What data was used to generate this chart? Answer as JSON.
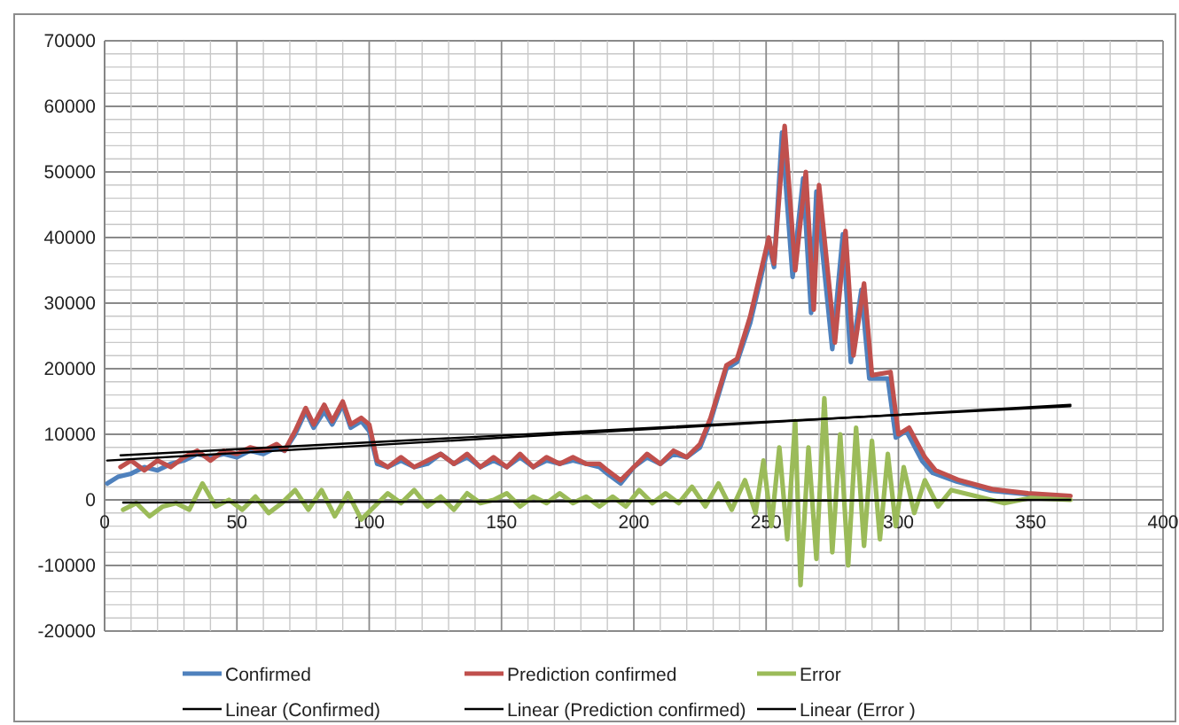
{
  "chart_data": {
    "type": "line",
    "legend": "bottom",
    "grid": true,
    "xlim": [
      0,
      400
    ],
    "xticks": [
      0,
      {
        "value": 10,
        "label": null
      },
      {
        "value": 20,
        "label": null
      },
      {
        "value": 30,
        "label": null
      },
      {
        "value": 40,
        "label": null
      },
      50,
      {
        "value": 60,
        "label": null
      },
      {
        "value": 70,
        "label": null
      },
      {
        "value": 80,
        "label": null
      },
      {
        "value": 90,
        "label": null
      },
      100,
      {
        "value": 110,
        "label": null
      },
      {
        "value": 120,
        "label": null
      },
      {
        "value": 130,
        "label": null
      },
      {
        "value": 140,
        "label": null
      },
      150,
      {
        "value": 160,
        "label": null
      },
      {
        "value": 170,
        "label": null
      },
      {
        "value": 180,
        "label": null
      },
      {
        "value": 190,
        "label": null
      },
      200,
      {
        "value": 210,
        "label": null
      },
      {
        "value": 220,
        "label": null
      },
      {
        "value": 230,
        "label": null
      },
      {
        "value": 240,
        "label": null
      },
      250,
      {
        "value": 260,
        "label": null
      },
      {
        "value": 270,
        "label": null
      },
      {
        "value": 280,
        "label": null
      },
      {
        "value": 290,
        "label": null
      },
      300,
      {
        "value": 310,
        "label": null
      },
      {
        "value": 320,
        "label": null
      },
      {
        "value": 330,
        "label": null
      },
      {
        "value": 340,
        "label": null
      },
      350,
      {
        "value": 360,
        "label": null
      },
      {
        "value": 370,
        "label": null
      },
      {
        "value": 380,
        "label": null
      },
      {
        "value": 390,
        "label": null
      },
      400
    ],
    "ylim": [
      -20000,
      70000
    ],
    "yticks": [
      -20000,
      {
        "value": -18000,
        "label": null
      },
      {
        "value": -16000,
        "label": null
      },
      {
        "value": -14000,
        "label": null
      },
      {
        "value": -12000,
        "label": null
      },
      -10000,
      {
        "value": -8000,
        "label": null
      },
      {
        "value": -6000,
        "label": null
      },
      {
        "value": -4000,
        "label": null
      },
      {
        "value": -2000,
        "label": null
      },
      0,
      {
        "value": 2000,
        "label": null
      },
      {
        "value": 4000,
        "label": null
      },
      {
        "value": 6000,
        "label": null
      },
      {
        "value": 8000,
        "label": null
      },
      10000,
      {
        "value": 12000,
        "label": null
      },
      {
        "value": 14000,
        "label": null
      },
      {
        "value": 16000,
        "label": null
      },
      {
        "value": 18000,
        "label": null
      },
      20000,
      {
        "value": 22000,
        "label": null
      },
      {
        "value": 24000,
        "label": null
      },
      {
        "value": 26000,
        "label": null
      },
      {
        "value": 28000,
        "label": null
      },
      30000,
      {
        "value": 32000,
        "label": null
      },
      {
        "value": 34000,
        "label": null
      },
      {
        "value": 36000,
        "label": null
      },
      {
        "value": 38000,
        "label": null
      },
      40000,
      {
        "value": 42000,
        "label": null
      },
      {
        "value": 44000,
        "label": null
      },
      {
        "value": 46000,
        "label": null
      },
      {
        "value": 48000,
        "label": null
      },
      50000,
      {
        "value": 52000,
        "label": null
      },
      {
        "value": 54000,
        "label": null
      },
      {
        "value": 56000,
        "label": null
      },
      {
        "value": 58000,
        "label": null
      },
      60000,
      {
        "value": 62000,
        "label": null
      },
      {
        "value": 64000,
        "label": null
      },
      {
        "value": 66000,
        "label": null
      },
      {
        "value": 68000,
        "label": null
      },
      70000
    ],
    "series": [
      {
        "name": "Confirmed",
        "color": "#4f81bd",
        "x": [
          1,
          5,
          10,
          15,
          20,
          25,
          30,
          35,
          40,
          45,
          50,
          55,
          60,
          65,
          68,
          72,
          76,
          79,
          83,
          86,
          90,
          93,
          97,
          100,
          103,
          107,
          112,
          117,
          122,
          127,
          132,
          137,
          142,
          147,
          152,
          157,
          162,
          167,
          172,
          177,
          182,
          187,
          190,
          195,
          200,
          205,
          210,
          215,
          220,
          225,
          229,
          235,
          239,
          244,
          251,
          253,
          256,
          260,
          264,
          267,
          269,
          275,
          279,
          282,
          286,
          289,
          296,
          299,
          303,
          309,
          313,
          322,
          335,
          348,
          364
        ],
        "values": [
          2500,
          3500,
          4000,
          5000,
          4500,
          5500,
          6000,
          7000,
          6500,
          7000,
          6500,
          7500,
          7000,
          8000,
          7500,
          10000,
          13500,
          11000,
          13500,
          11500,
          14500,
          11000,
          12000,
          10500,
          5500,
          5000,
          6000,
          5000,
          5500,
          7000,
          5500,
          6500,
          5000,
          6000,
          5000,
          6500,
          5000,
          6000,
          5500,
          6000,
          5500,
          5000,
          4000,
          2500,
          5000,
          6500,
          5500,
          7000,
          6500,
          8000,
          12000,
          20000,
          21000,
          27000,
          39000,
          35500,
          56000,
          34000,
          49000,
          28500,
          47000,
          23000,
          40500,
          21000,
          32000,
          18500,
          18500,
          9500,
          10500,
          5900,
          4100,
          2800,
          1400,
          900,
          500
        ]
      },
      {
        "name": "Prediction confirmed",
        "color": "#c0504d",
        "x": [
          6,
          10,
          15,
          20,
          25,
          30,
          35,
          40,
          45,
          50,
          55,
          60,
          65,
          68,
          72,
          76,
          79,
          83,
          86,
          90,
          93,
          97,
          100,
          103,
          107,
          112,
          117,
          122,
          127,
          132,
          137,
          142,
          147,
          152,
          157,
          162,
          167,
          172,
          177,
          182,
          187,
          190,
          195,
          200,
          205,
          210,
          215,
          220,
          225,
          229,
          235,
          239,
          244,
          251,
          253,
          257,
          261,
          265,
          268,
          270,
          276,
          280,
          283,
          287,
          290,
          297,
          300,
          304,
          310,
          314,
          323,
          336,
          349,
          365
        ],
        "values": [
          5000,
          6000,
          4500,
          6000,
          5000,
          6500,
          7500,
          6000,
          7500,
          7000,
          8000,
          7500,
          8500,
          7500,
          10500,
          14000,
          11500,
          14500,
          12000,
          15000,
          11500,
          12500,
          11500,
          6000,
          5000,
          6500,
          5000,
          6000,
          7000,
          5500,
          7000,
          5000,
          6500,
          5000,
          7000,
          5000,
          6500,
          5500,
          6500,
          5500,
          5500,
          4500,
          3000,
          5000,
          7000,
          5500,
          7500,
          6500,
          8500,
          12500,
          20500,
          21500,
          28000,
          40000,
          36000,
          57000,
          35000,
          50000,
          29000,
          48000,
          24000,
          41000,
          22000,
          33000,
          19000,
          19500,
          10000,
          11000,
          6500,
          4500,
          3000,
          1600,
          1000,
          600
        ]
      },
      {
        "name": "Error",
        "color": "#9bbb59",
        "x": [
          7,
          12,
          17,
          22,
          27,
          32,
          37,
          42,
          47,
          52,
          57,
          62,
          67,
          72,
          77,
          82,
          87,
          92,
          97,
          102,
          107,
          112,
          117,
          122,
          127,
          132,
          137,
          142,
          147,
          152,
          157,
          162,
          167,
          172,
          177,
          182,
          187,
          192,
          197,
          202,
          207,
          212,
          217,
          222,
          227,
          232,
          237,
          242,
          246,
          249,
          252,
          255,
          258,
          261,
          263,
          266,
          269,
          272,
          275,
          278,
          281,
          284,
          287,
          290,
          293,
          296,
          299,
          302,
          306,
          310,
          315,
          320,
          330,
          340,
          350,
          365
        ],
        "values": [
          -1500,
          -500,
          -2500,
          -1000,
          -500,
          -1500,
          2500,
          -1000,
          0,
          -1500,
          500,
          -2000,
          -500,
          1500,
          -1500,
          1500,
          -2500,
          1000,
          -3000,
          -1000,
          1000,
          -500,
          1500,
          -1000,
          500,
          -1500,
          1000,
          -500,
          0,
          1000,
          -1000,
          500,
          -500,
          1000,
          -500,
          500,
          -1000,
          500,
          -1000,
          1500,
          -500,
          1000,
          -500,
          2000,
          -1000,
          2500,
          -1500,
          3000,
          -2000,
          6000,
          -4000,
          8000,
          -6000,
          12000,
          -13000,
          8000,
          -9000,
          15500,
          -8000,
          10000,
          -10000,
          11000,
          -7000,
          9000,
          -6000,
          7000,
          -4000,
          5000,
          -2000,
          3000,
          -1000,
          1500,
          500,
          -500,
          300,
          0
        ]
      },
      {
        "name": "Linear (Confirmed)",
        "color": "#000000",
        "x": [
          1,
          365
        ],
        "values": [
          6000,
          14500
        ]
      },
      {
        "name": "Linear (Prediction confirmed)",
        "color": "#000000",
        "x": [
          6,
          365
        ],
        "values": [
          6800,
          14300
        ]
      },
      {
        "name": "Linear (Error )",
        "color": "#000000",
        "x": [
          7,
          365
        ],
        "values": [
          -400,
          0
        ]
      }
    ]
  }
}
